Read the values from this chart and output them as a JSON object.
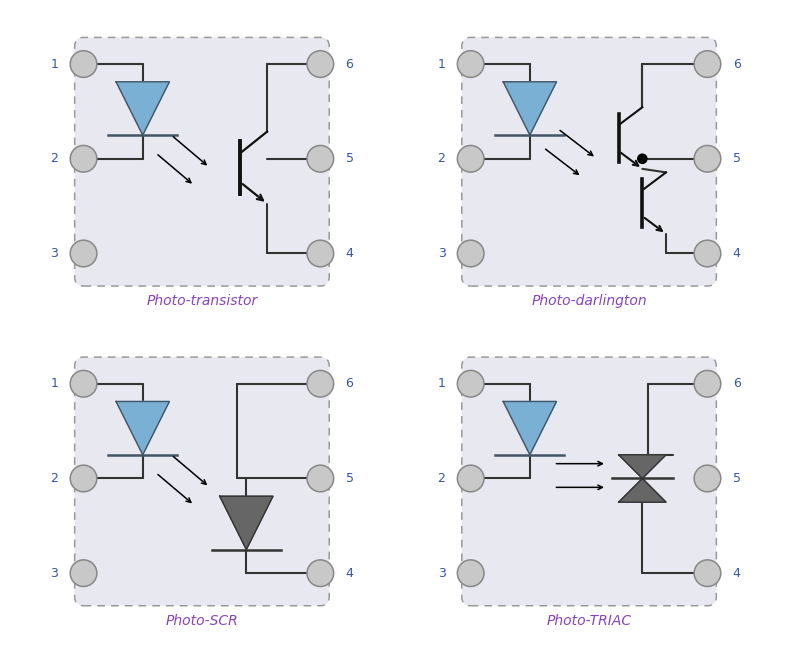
{
  "background_color": "#ffffff",
  "panel_bg": "#e8e8f0",
  "panel_border": "#999999",
  "led_fill": "#7ab0d4",
  "led_edge": "#445566",
  "npn_color": "#111111",
  "scr_fill": "#666666",
  "triac_fill": "#666666",
  "wire_color": "#333333",
  "pin_fill": "#c8c8c8",
  "pin_edge": "#888888",
  "label_color": "#8844bb",
  "pin_label_color": "#3355aa",
  "pin_label_size": 9,
  "title_size": 10,
  "panels": [
    {
      "title": "Photo-transistor",
      "type": "transistor"
    },
    {
      "title": "Photo-darlington",
      "type": "darlington"
    },
    {
      "title": "Photo-SCR",
      "type": "scr"
    },
    {
      "title": "Photo-TRIAC",
      "type": "triac"
    }
  ]
}
